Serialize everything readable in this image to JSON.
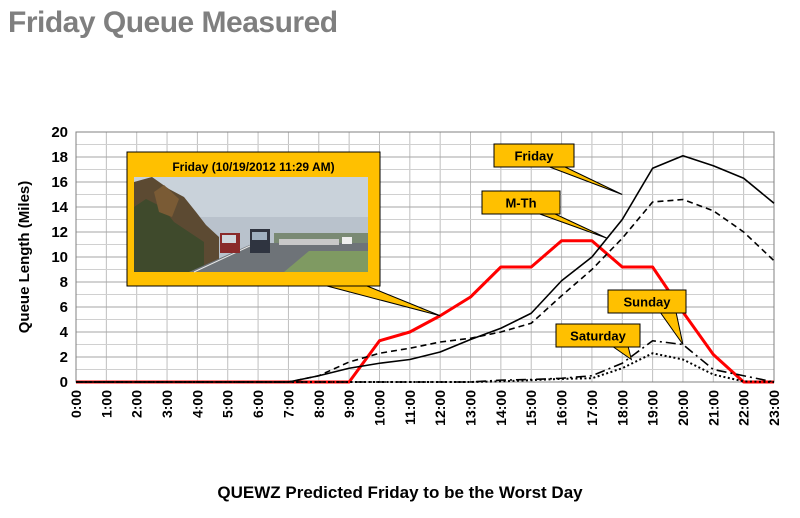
{
  "slide": {
    "title": "Friday Queue Measured",
    "caption": "QUEWZ Predicted Friday to be the Worst Day"
  },
  "chart_data": {
    "type": "line",
    "ylabel": "Queue Length (Miles)",
    "xlabel": "",
    "ylim": [
      0,
      20
    ],
    "yticks": [
      0,
      2,
      4,
      6,
      8,
      10,
      12,
      14,
      16,
      18,
      20
    ],
    "grid": true,
    "x": [
      "0:00",
      "1:00",
      "2:00",
      "3:00",
      "4:00",
      "5:00",
      "6:00",
      "7:00",
      "8:00",
      "9:00",
      "10:00",
      "11:00",
      "12:00",
      "13:00",
      "14:00",
      "15:00",
      "16:00",
      "17:00",
      "18:00",
      "19:00",
      "20:00",
      "21:00",
      "22:00",
      "23:00"
    ],
    "series": [
      {
        "name": "Friday (10/19/2012 11:29 AM)",
        "color": "#ff0000",
        "style": "solid",
        "width": 3,
        "points": [
          [
            0,
            0
          ],
          [
            9,
            0
          ],
          [
            10,
            3.3
          ],
          [
            11,
            4.0
          ],
          [
            12,
            5.3
          ],
          [
            13,
            6.8
          ],
          [
            14,
            9.2
          ],
          [
            15,
            9.2
          ],
          [
            16,
            11.3
          ],
          [
            17,
            11.3
          ],
          [
            18,
            9.2
          ],
          [
            19,
            9.2
          ],
          [
            20,
            5.6
          ],
          [
            21,
            2.2
          ],
          [
            22,
            0
          ],
          [
            23,
            0
          ]
        ]
      },
      {
        "name": "Friday",
        "color": "#000000",
        "style": "solid",
        "width": 1.6,
        "points": [
          [
            0,
            0
          ],
          [
            7,
            0
          ],
          [
            8,
            0.5
          ],
          [
            9,
            1.1
          ],
          [
            10,
            1.5
          ],
          [
            11,
            1.8
          ],
          [
            12,
            2.4
          ],
          [
            13,
            3.4
          ],
          [
            14,
            4.3
          ],
          [
            15,
            5.5
          ],
          [
            16,
            8.1
          ],
          [
            17,
            10.0
          ],
          [
            18,
            13.0
          ],
          [
            19,
            17.1
          ],
          [
            20,
            18.1
          ],
          [
            21,
            17.3
          ],
          [
            22,
            16.3
          ],
          [
            23,
            14.3
          ]
        ]
      },
      {
        "name": "M-Th",
        "color": "#000000",
        "style": "dashed",
        "width": 1.6,
        "points": [
          [
            0,
            0
          ],
          [
            7,
            0
          ],
          [
            8,
            0.5
          ],
          [
            9,
            1.6
          ],
          [
            10,
            2.3
          ],
          [
            11,
            2.7
          ],
          [
            12,
            3.2
          ],
          [
            13,
            3.5
          ],
          [
            14,
            4.0
          ],
          [
            15,
            4.7
          ],
          [
            16,
            6.9
          ],
          [
            17,
            9.0
          ],
          [
            18,
            11.5
          ],
          [
            19,
            14.4
          ],
          [
            20,
            14.6
          ],
          [
            21,
            13.7
          ],
          [
            22,
            12.0
          ],
          [
            23,
            9.7
          ]
        ]
      },
      {
        "name": "Sunday",
        "color": "#000000",
        "style": "dashdot",
        "width": 1.6,
        "points": [
          [
            0,
            0
          ],
          [
            13,
            0
          ],
          [
            14,
            0.15
          ],
          [
            15,
            0.2
          ],
          [
            16,
            0.3
          ],
          [
            17,
            0.5
          ],
          [
            18,
            1.5
          ],
          [
            19,
            3.3
          ],
          [
            20,
            3.0
          ],
          [
            21,
            1.0
          ],
          [
            22,
            0.5
          ],
          [
            23,
            0
          ]
        ]
      },
      {
        "name": "Saturday",
        "color": "#000000",
        "style": "dotted",
        "width": 2,
        "points": [
          [
            0,
            0
          ],
          [
            13,
            0
          ],
          [
            14,
            0.05
          ],
          [
            15,
            0.15
          ],
          [
            16,
            0.25
          ],
          [
            17,
            0.3
          ],
          [
            18,
            1.1
          ],
          [
            19,
            2.3
          ],
          [
            20,
            1.8
          ],
          [
            21,
            0.6
          ],
          [
            22,
            0.05
          ],
          [
            23,
            0
          ]
        ]
      }
    ],
    "annotations": [
      {
        "text": "Friday (10/19/2012 11:29 AM)",
        "kind": "photo-callout",
        "target": [
          12,
          5.3
        ],
        "fill": "#ffc000"
      },
      {
        "text": "Friday",
        "kind": "callout",
        "target": [
          18,
          15.0
        ],
        "fill": "#ffc000"
      },
      {
        "text": "M-Th",
        "kind": "callout",
        "target": [
          17.5,
          11.5
        ],
        "fill": "#ffc000"
      },
      {
        "text": "Sunday",
        "kind": "callout",
        "target": [
          20,
          3.0
        ],
        "fill": "#ffc000"
      },
      {
        "text": "Saturday",
        "kind": "callout",
        "target": [
          18.3,
          1.8
        ],
        "fill": "#ffc000"
      }
    ]
  },
  "photo": {
    "description_icon": "highway-traffic-photo"
  }
}
